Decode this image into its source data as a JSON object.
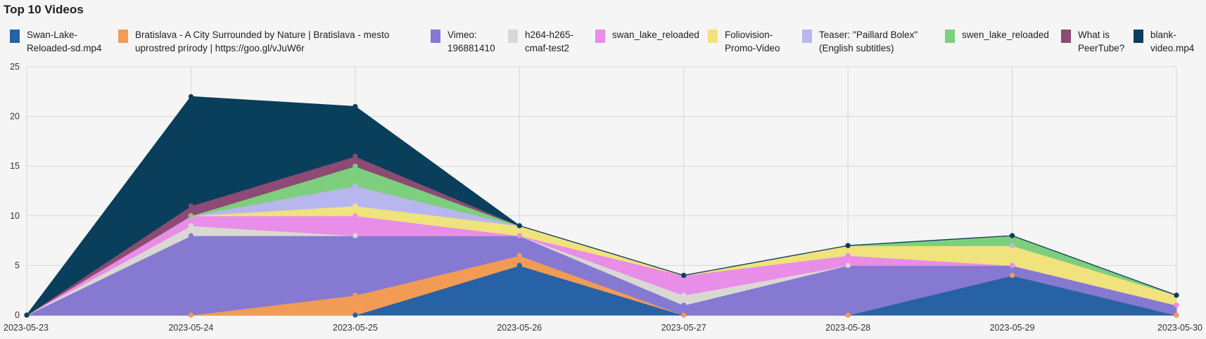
{
  "title": "Top 10 Videos",
  "chart_data": {
    "type": "area",
    "stacked": true,
    "title": "Top 10 Videos",
    "x": [
      "2023-05-23",
      "2023-05-24",
      "2023-05-25",
      "2023-05-26",
      "2023-05-27",
      "2023-05-28",
      "2023-05-29",
      "2023-05-30"
    ],
    "ylim": [
      0,
      25
    ],
    "yticks": [
      0,
      5,
      10,
      15,
      20,
      25
    ],
    "grid": true,
    "legend_position": "top",
    "series": [
      {
        "name": "Swan-Lake-Reloaded-sd.mp4",
        "color": "#2762a6",
        "values": [
          0,
          0,
          0,
          5,
          0,
          0,
          4,
          0
        ]
      },
      {
        "name": "Bratislava - A City Surrounded by Nature | Bratislava - mesto uprostred prírody | https://goo.gl/vJuW6r",
        "color": "#f29b55",
        "values": [
          0,
          0,
          2,
          1,
          0,
          0,
          0,
          0
        ]
      },
      {
        "name": "Vimeo: 196881410",
        "color": "#8679d2",
        "values": [
          0,
          8,
          6,
          2,
          1,
          5,
          1,
          1
        ]
      },
      {
        "name": "h264-h265-cmaf-test2",
        "color": "#d9d9d3",
        "values": [
          0,
          1,
          0,
          0,
          1,
          0,
          0,
          0
        ]
      },
      {
        "name": "swan_lake_reloaded",
        "color": "#e88de8",
        "values": [
          0,
          1,
          2,
          0,
          2,
          1,
          0,
          0
        ]
      },
      {
        "name": "Foliovision-Promo-Video",
        "color": "#f0e27d",
        "values": [
          0,
          0,
          1,
          1,
          0,
          1,
          2,
          1
        ]
      },
      {
        "name": "Teaser: \"Paillard Bolex\" (English subtitles)",
        "color": "#b8b6ee",
        "values": [
          0,
          0,
          2,
          0,
          0,
          0,
          0,
          0
        ]
      },
      {
        "name": "swen_lake_reloaded",
        "color": "#7dcf7d",
        "values": [
          0,
          0,
          2,
          0,
          0,
          0,
          1,
          0
        ]
      },
      {
        "name": "What is PeerTube?",
        "color": "#8d4a74",
        "values": [
          0,
          1,
          1,
          0,
          0,
          0,
          0,
          0
        ]
      },
      {
        "name": "blank-video.mp4",
        "color": "#093f5b",
        "values": [
          0,
          11,
          5,
          0,
          0,
          0,
          0,
          0
        ]
      }
    ]
  },
  "legend": [
    {
      "lines": [
        "Swan-Lake-",
        "Reloaded-sd.mp4"
      ]
    },
    {
      "lines": [
        "Bratislava - A City Surrounded by Nature | Bratislava - mesto",
        "uprostred prírody | https://goo.gl/vJuW6r"
      ]
    },
    {
      "lines": [
        "Vimeo:",
        "196881410"
      ]
    },
    {
      "lines": [
        "h264-h265-",
        "cmaf-test2"
      ]
    },
    {
      "lines": [
        "swan_lake_reloaded"
      ]
    },
    {
      "lines": [
        "Foliovision-",
        "Promo-Video"
      ]
    },
    {
      "lines": [
        "Teaser: \"Paillard Bolex\"",
        "(English subtitles)"
      ]
    },
    {
      "lines": [
        "swen_lake_reloaded"
      ]
    },
    {
      "lines": [
        "What is",
        "PeerTube?"
      ]
    },
    {
      "lines": [
        "blank-",
        "video.mp4"
      ]
    }
  ]
}
